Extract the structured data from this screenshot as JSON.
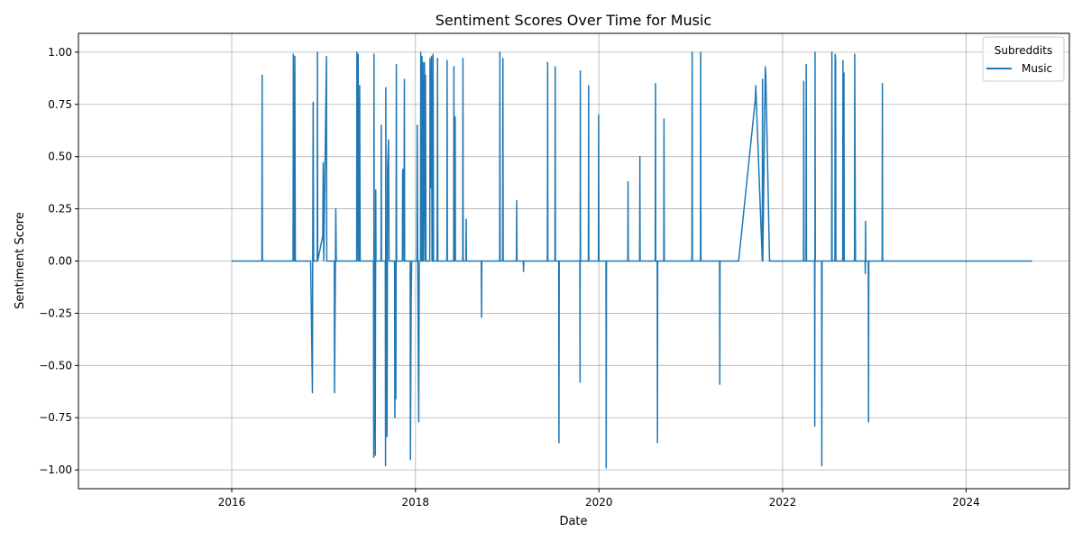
{
  "chart_data": {
    "type": "line",
    "title": "Sentiment Scores Over Time for Music",
    "xlabel": "Date",
    "ylabel": "Sentiment Score",
    "xlim": [
      "2014-05-01",
      "2025-02-15"
    ],
    "ylim": [
      -1.09,
      1.09
    ],
    "xticks": [
      "2016",
      "2018",
      "2020",
      "2022",
      "2024"
    ],
    "yticks": [
      -1.0,
      -0.75,
      -0.5,
      -0.25,
      0.0,
      0.25,
      0.5,
      0.75,
      1.0
    ],
    "ytick_labels": [
      "−1.00",
      "−0.75",
      "−0.50",
      "−0.25",
      "0.00",
      "0.25",
      "0.50",
      "0.75",
      "1.00"
    ],
    "grid": true,
    "legend": {
      "title": "Subreddits",
      "placement": "top-right"
    },
    "series": [
      {
        "name": "Music",
        "color": "#1f77b4",
        "points": [
          [
            "2016-01-01",
            0.0
          ],
          [
            "2016-04-01",
            0.0
          ],
          [
            "2016-04-30",
            0.0
          ],
          [
            "2016-05-01",
            0.89
          ],
          [
            "2016-05-02",
            0.0
          ],
          [
            "2016-05-20",
            0.0
          ],
          [
            "2016-09-01",
            0.0
          ],
          [
            "2016-09-02",
            0.99
          ],
          [
            "2016-09-05",
            0.0
          ],
          [
            "2016-09-08",
            0.98
          ],
          [
            "2016-09-10",
            0.0
          ],
          [
            "2016-10-15",
            0.0
          ],
          [
            "2016-11-10",
            0.0
          ],
          [
            "2016-11-17",
            -0.63
          ],
          [
            "2016-11-18",
            -0.05
          ],
          [
            "2016-11-20",
            0.76
          ],
          [
            "2016-11-22",
            0.0
          ],
          [
            "2016-12-06",
            0.0
          ],
          [
            "2016-12-07",
            1.0
          ],
          [
            "2016-12-08",
            0.0
          ],
          [
            "2016-12-28",
            0.12
          ],
          [
            "2016-12-30",
            0.47
          ],
          [
            "2017-01-01",
            0.0
          ],
          [
            "2017-01-12",
            0.98
          ],
          [
            "2017-01-13",
            0.0
          ],
          [
            "2017-02-12",
            0.0
          ],
          [
            "2017-02-13",
            -0.63
          ],
          [
            "2017-02-18",
            0.25
          ],
          [
            "2017-02-20",
            0.0
          ],
          [
            "2017-03-15",
            0.0
          ],
          [
            "2017-04-15",
            0.0
          ],
          [
            "2017-05-12",
            0.0
          ],
          [
            "2017-05-13",
            1.0
          ],
          [
            "2017-05-14",
            0.0
          ],
          [
            "2017-05-18",
            0.99
          ],
          [
            "2017-05-20",
            0.0
          ],
          [
            "2017-05-22",
            0.0
          ],
          [
            "2017-05-24",
            0.84
          ],
          [
            "2017-05-26",
            0.0
          ],
          [
            "2017-06-20",
            0.0
          ],
          [
            "2017-07-18",
            0.0
          ],
          [
            "2017-07-19",
            -0.94
          ],
          [
            "2017-07-20",
            0.99
          ],
          [
            "2017-07-21",
            0.0
          ],
          [
            "2017-07-25",
            -0.93
          ],
          [
            "2017-07-27",
            0.34
          ],
          [
            "2017-07-28",
            0.0
          ],
          [
            "2017-08-17",
            0.0
          ],
          [
            "2017-08-18",
            0.65
          ],
          [
            "2017-08-19",
            0.0
          ],
          [
            "2017-09-03",
            0.0
          ],
          [
            "2017-09-04",
            -0.98
          ],
          [
            "2017-09-05",
            0.83
          ],
          [
            "2017-09-06",
            0.0
          ],
          [
            "2017-09-10",
            -0.84
          ],
          [
            "2017-09-12",
            0.45
          ],
          [
            "2017-09-16",
            0.58
          ],
          [
            "2017-09-18",
            0.0
          ],
          [
            "2017-10-10",
            0.0
          ],
          [
            "2017-10-11",
            -0.75
          ],
          [
            "2017-10-13",
            0.0
          ],
          [
            "2017-10-15",
            -0.66
          ],
          [
            "2017-10-17",
            0.94
          ],
          [
            "2017-10-18",
            0.0
          ],
          [
            "2017-11-10",
            0.0
          ],
          [
            "2017-11-11",
            0.43
          ],
          [
            "2017-11-13",
            0.44
          ],
          [
            "2017-11-16",
            0.0
          ],
          [
            "2017-11-18",
            0.87
          ],
          [
            "2017-11-19",
            0.0
          ],
          [
            "2017-12-11",
            0.0
          ],
          [
            "2017-12-12",
            -0.95
          ],
          [
            "2017-12-15",
            -0.18
          ],
          [
            "2017-12-17",
            0.0
          ],
          [
            "2018-01-07",
            0.0
          ],
          [
            "2018-01-08",
            0.65
          ],
          [
            "2018-01-10",
            0.0
          ],
          [
            "2018-01-14",
            -0.77
          ],
          [
            "2018-01-16",
            0.0
          ],
          [
            "2018-01-21",
            0.0
          ],
          [
            "2018-01-22",
            1.0
          ],
          [
            "2018-01-24",
            0.0
          ],
          [
            "2018-01-27",
            0.98
          ],
          [
            "2018-01-29",
            0.0
          ],
          [
            "2018-01-31",
            0.95
          ],
          [
            "2018-02-01",
            0.0
          ],
          [
            "2018-02-06",
            0.95
          ],
          [
            "2018-02-08",
            0.0
          ],
          [
            "2018-02-10",
            0.89
          ],
          [
            "2018-02-12",
            0.0
          ],
          [
            "2018-02-27",
            0.0
          ],
          [
            "2018-02-28",
            0.97
          ],
          [
            "2018-03-02",
            0.35
          ],
          [
            "2018-03-06",
            0.98
          ],
          [
            "2018-03-08",
            0.0
          ],
          [
            "2018-03-10",
            0.0
          ],
          [
            "2018-03-12",
            0.99
          ],
          [
            "2018-03-14",
            0.0
          ],
          [
            "2018-03-28",
            0.0
          ],
          [
            "2018-03-29",
            0.35
          ],
          [
            "2018-03-30",
            0.97
          ],
          [
            "2018-03-31",
            0.0
          ],
          [
            "2018-05-06",
            0.0
          ],
          [
            "2018-05-07",
            0.96
          ],
          [
            "2018-05-08",
            0.0
          ],
          [
            "2018-06-02",
            0.0
          ],
          [
            "2018-06-03",
            0.93
          ],
          [
            "2018-06-04",
            0.0
          ],
          [
            "2018-06-08",
            0.69
          ],
          [
            "2018-06-09",
            0.0
          ],
          [
            "2018-07-08",
            0.0
          ],
          [
            "2018-07-09",
            0.97
          ],
          [
            "2018-07-10",
            0.0
          ],
          [
            "2018-07-21",
            0.0
          ],
          [
            "2018-07-22",
            0.2
          ],
          [
            "2018-07-23",
            0.0
          ],
          [
            "2018-08-15",
            0.0
          ],
          [
            "2018-09-20",
            0.0
          ],
          [
            "2018-09-21",
            -0.27
          ],
          [
            "2018-09-22",
            0.0
          ],
          [
            "2018-11-01",
            0.0
          ],
          [
            "2018-12-02",
            0.0
          ],
          [
            "2018-12-03",
            1.0
          ],
          [
            "2018-12-04",
            0.0
          ],
          [
            "2018-12-14",
            0.0
          ],
          [
            "2018-12-15",
            0.97
          ],
          [
            "2018-12-16",
            0.0
          ],
          [
            "2019-01-20",
            0.0
          ],
          [
            "2019-02-07",
            0.0
          ],
          [
            "2019-02-08",
            0.29
          ],
          [
            "2019-02-09",
            0.0
          ],
          [
            "2019-03-06",
            0.0
          ],
          [
            "2019-03-07",
            -0.05
          ],
          [
            "2019-03-08",
            0.0
          ],
          [
            "2019-04-15",
            0.0
          ],
          [
            "2019-06-10",
            0.0
          ],
          [
            "2019-06-11",
            0.95
          ],
          [
            "2019-06-12",
            0.0
          ],
          [
            "2019-07-10",
            0.0
          ],
          [
            "2019-07-11",
            0.93
          ],
          [
            "2019-07-12",
            0.0
          ],
          [
            "2019-07-25",
            0.0
          ],
          [
            "2019-07-26",
            -0.87
          ],
          [
            "2019-07-27",
            0.0
          ],
          [
            "2019-10-17",
            0.0
          ],
          [
            "2019-10-18",
            -0.58
          ],
          [
            "2019-10-19",
            0.91
          ],
          [
            "2019-10-20",
            0.0
          ],
          [
            "2019-11-20",
            0.0
          ],
          [
            "2019-11-21",
            0.84
          ],
          [
            "2019-11-22",
            0.0
          ],
          [
            "2019-12-30",
            0.0
          ],
          [
            "2019-12-31",
            0.7
          ],
          [
            "2020-01-01",
            0.0
          ],
          [
            "2020-01-29",
            0.0
          ],
          [
            "2020-01-30",
            -0.99
          ],
          [
            "2020-01-31",
            0.0
          ],
          [
            "2020-03-10",
            0.0
          ],
          [
            "2020-04-25",
            0.0
          ],
          [
            "2020-04-26",
            0.38
          ],
          [
            "2020-04-27",
            0.0
          ],
          [
            "2020-06-11",
            0.0
          ],
          [
            "2020-06-12",
            0.5
          ],
          [
            "2020-06-13",
            0.0
          ],
          [
            "2020-08-12",
            0.0
          ],
          [
            "2020-08-13",
            0.85
          ],
          [
            "2020-08-14",
            0.0
          ],
          [
            "2020-08-20",
            0.0
          ],
          [
            "2020-08-21",
            -0.87
          ],
          [
            "2020-08-22",
            0.0
          ],
          [
            "2020-09-15",
            0.0
          ],
          [
            "2020-09-16",
            0.68
          ],
          [
            "2020-09-17",
            0.0
          ],
          [
            "2020-10-20",
            0.0
          ],
          [
            "2020-11-25",
            0.0
          ],
          [
            "2021-01-05",
            0.0
          ],
          [
            "2021-01-06",
            1.0
          ],
          [
            "2021-01-07",
            0.0
          ],
          [
            "2021-02-08",
            0.0
          ],
          [
            "2021-02-09",
            1.0
          ],
          [
            "2021-02-10",
            0.0
          ],
          [
            "2021-03-20",
            0.0
          ],
          [
            "2021-04-25",
            0.0
          ],
          [
            "2021-04-26",
            -0.59
          ],
          [
            "2021-04-27",
            0.0
          ],
          [
            "2021-07-10",
            0.0
          ],
          [
            "2021-09-14",
            0.77
          ],
          [
            "2021-09-16",
            0.84
          ],
          [
            "2021-10-12",
            0.0
          ],
          [
            "2021-10-13",
            0.87
          ],
          [
            "2021-10-14",
            0.0
          ],
          [
            "2021-10-24",
            0.93
          ],
          [
            "2021-10-26",
            0.89
          ],
          [
            "2021-11-10",
            0.0
          ],
          [
            "2022-01-20",
            0.0
          ],
          [
            "2022-03-25",
            0.0
          ],
          [
            "2022-03-26",
            0.86
          ],
          [
            "2022-03-27",
            0.0
          ],
          [
            "2022-04-04",
            0.0
          ],
          [
            "2022-04-05",
            0.94
          ],
          [
            "2022-04-06",
            0.0
          ],
          [
            "2022-05-08",
            0.0
          ],
          [
            "2022-05-09",
            -0.79
          ],
          [
            "2022-05-10",
            1.0
          ],
          [
            "2022-05-11",
            0.0
          ],
          [
            "2022-06-05",
            0.0
          ],
          [
            "2022-06-06",
            -0.98
          ],
          [
            "2022-06-07",
            0.0
          ],
          [
            "2022-07-15",
            0.0
          ],
          [
            "2022-07-16",
            1.0
          ],
          [
            "2022-07-17",
            0.0
          ],
          [
            "2022-07-28",
            0.0
          ],
          [
            "2022-07-29",
            0.99
          ],
          [
            "2022-07-31",
            0.96
          ],
          [
            "2022-08-01",
            0.0
          ],
          [
            "2022-08-28",
            0.0
          ],
          [
            "2022-08-29",
            0.96
          ],
          [
            "2022-08-31",
            0.0
          ],
          [
            "2022-09-02",
            0.9
          ],
          [
            "2022-09-03",
            0.0
          ],
          [
            "2022-10-14",
            0.0
          ],
          [
            "2022-10-15",
            0.99
          ],
          [
            "2022-10-17",
            0.23
          ],
          [
            "2022-10-18",
            0.0
          ],
          [
            "2022-11-25",
            0.0
          ],
          [
            "2022-11-26",
            -0.06
          ],
          [
            "2022-11-27",
            0.19
          ],
          [
            "2022-11-28",
            0.0
          ],
          [
            "2022-12-08",
            0.0
          ],
          [
            "2022-12-09",
            -0.77
          ],
          [
            "2022-12-10",
            0.0
          ],
          [
            "2023-01-10",
            0.0
          ],
          [
            "2023-02-01",
            0.0
          ],
          [
            "2023-02-02",
            0.85
          ],
          [
            "2023-02-03",
            0.0
          ],
          [
            "2023-04-15",
            0.0
          ],
          [
            "2023-06-01",
            0.0
          ],
          [
            "2024-03-05",
            0.0
          ],
          [
            "2024-05-10",
            0.0
          ],
          [
            "2024-07-05",
            0.0
          ],
          [
            "2024-08-20",
            0.0
          ],
          [
            "2024-09-20",
            0.0
          ]
        ]
      }
    ]
  }
}
